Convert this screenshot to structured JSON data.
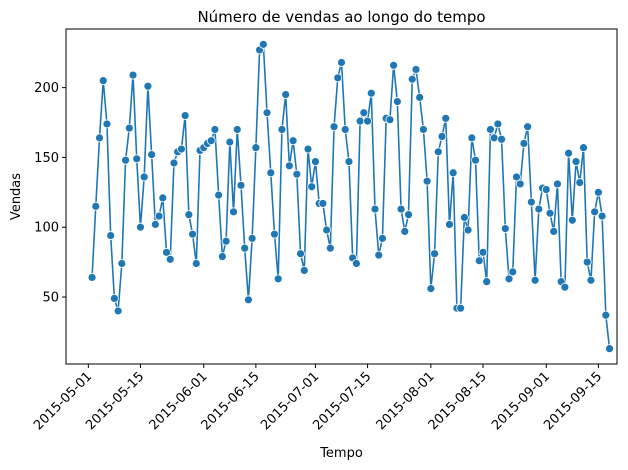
{
  "chart_data": {
    "type": "line",
    "title": "Número de vendas ao longo do tempo",
    "xlabel": "Tempo",
    "ylabel": "Vendas",
    "x_type": "date",
    "xlim": [
      "2015-04-25",
      "2015-09-20"
    ],
    "ylim": [
      2,
      242
    ],
    "x_ticks": [
      "2015-05-01",
      "2015-05-15",
      "2015-06-01",
      "2015-06-15",
      "2015-07-01",
      "2015-07-15",
      "2015-08-01",
      "2015-08-15",
      "2015-09-01",
      "2015-09-15"
    ],
    "y_ticks": [
      50,
      100,
      150,
      200
    ],
    "grid": false,
    "color": "#1f77b4",
    "marker": "circle",
    "series": [
      {
        "x": [
          "2015-05-02",
          "2015-05-03",
          "2015-05-04",
          "2015-05-05",
          "2015-05-06",
          "2015-05-07",
          "2015-05-08",
          "2015-05-09",
          "2015-05-10",
          "2015-05-11",
          "2015-05-12",
          "2015-05-13",
          "2015-05-14",
          "2015-05-15",
          "2015-05-16",
          "2015-05-17",
          "2015-05-18",
          "2015-05-19",
          "2015-05-20",
          "2015-05-21",
          "2015-05-22",
          "2015-05-23",
          "2015-05-24",
          "2015-05-25",
          "2015-05-26",
          "2015-05-27",
          "2015-05-28",
          "2015-05-29",
          "2015-05-30",
          "2015-05-31",
          "2015-06-01",
          "2015-06-02",
          "2015-06-03",
          "2015-06-04",
          "2015-06-05",
          "2015-06-06",
          "2015-06-07",
          "2015-06-08",
          "2015-06-09",
          "2015-06-10",
          "2015-06-11",
          "2015-06-12",
          "2015-06-13",
          "2015-06-14",
          "2015-06-15",
          "2015-06-16",
          "2015-06-17",
          "2015-06-18",
          "2015-06-19",
          "2015-06-20",
          "2015-06-21",
          "2015-06-22",
          "2015-06-23",
          "2015-06-24",
          "2015-06-25",
          "2015-06-26",
          "2015-06-27",
          "2015-06-28",
          "2015-06-29",
          "2015-06-30",
          "2015-07-01",
          "2015-07-02",
          "2015-07-03",
          "2015-07-04",
          "2015-07-05",
          "2015-07-06",
          "2015-07-07",
          "2015-07-08",
          "2015-07-09",
          "2015-07-10",
          "2015-07-11",
          "2015-07-12",
          "2015-07-13",
          "2015-07-14",
          "2015-07-15",
          "2015-07-16",
          "2015-07-17",
          "2015-07-18",
          "2015-07-19",
          "2015-07-20",
          "2015-07-21",
          "2015-07-22",
          "2015-07-23",
          "2015-07-24",
          "2015-07-25",
          "2015-07-26",
          "2015-07-27",
          "2015-07-28",
          "2015-07-29",
          "2015-07-30",
          "2015-07-31",
          "2015-08-01",
          "2015-08-02",
          "2015-08-03",
          "2015-08-04",
          "2015-08-05",
          "2015-08-06",
          "2015-08-07",
          "2015-08-08",
          "2015-08-09",
          "2015-08-10",
          "2015-08-11",
          "2015-08-12",
          "2015-08-13",
          "2015-08-14",
          "2015-08-15",
          "2015-08-16",
          "2015-08-17",
          "2015-08-18",
          "2015-08-19",
          "2015-08-20",
          "2015-08-21",
          "2015-08-22",
          "2015-08-23",
          "2015-08-24",
          "2015-08-25",
          "2015-08-26",
          "2015-08-27",
          "2015-08-28",
          "2015-08-29",
          "2015-08-30",
          "2015-08-31",
          "2015-09-01",
          "2015-09-02",
          "2015-09-03",
          "2015-09-04",
          "2015-09-05",
          "2015-09-06",
          "2015-09-07",
          "2015-09-08",
          "2015-09-09",
          "2015-09-10",
          "2015-09-11",
          "2015-09-12",
          "2015-09-13",
          "2015-09-14",
          "2015-09-15",
          "2015-09-16",
          "2015-09-17",
          "2015-09-18"
        ],
        "y": [
          64,
          115,
          164,
          205,
          174,
          94,
          49,
          40,
          74,
          148,
          171,
          209,
          149,
          100,
          136,
          201,
          152,
          102,
          108,
          121,
          82,
          77,
          146,
          154,
          156,
          180,
          109,
          95,
          74,
          155,
          157,
          160,
          162,
          170,
          123,
          79,
          90,
          161,
          111,
          170,
          130,
          85,
          48,
          92,
          157,
          227,
          231,
          182,
          139,
          95,
          63,
          170,
          195,
          144,
          162,
          138,
          81,
          69,
          156,
          129,
          147,
          117,
          117,
          98,
          85,
          172,
          207,
          218,
          170,
          147,
          78,
          74,
          176,
          182,
          176,
          196,
          113,
          80,
          92,
          178,
          177,
          216,
          190,
          113,
          97,
          109,
          206,
          213,
          193,
          170,
          133,
          56,
          81,
          154,
          165,
          178,
          102,
          139,
          42,
          42,
          107,
          98,
          164,
          148,
          76,
          82,
          61,
          170,
          164,
          174,
          163,
          99,
          63,
          68,
          136,
          131,
          160,
          172,
          118,
          62,
          113,
          128,
          127,
          110,
          97,
          131,
          61,
          57,
          153,
          105,
          147,
          132,
          157,
          75,
          62,
          111,
          125,
          108,
          37,
          13
        ]
      }
    ]
  }
}
